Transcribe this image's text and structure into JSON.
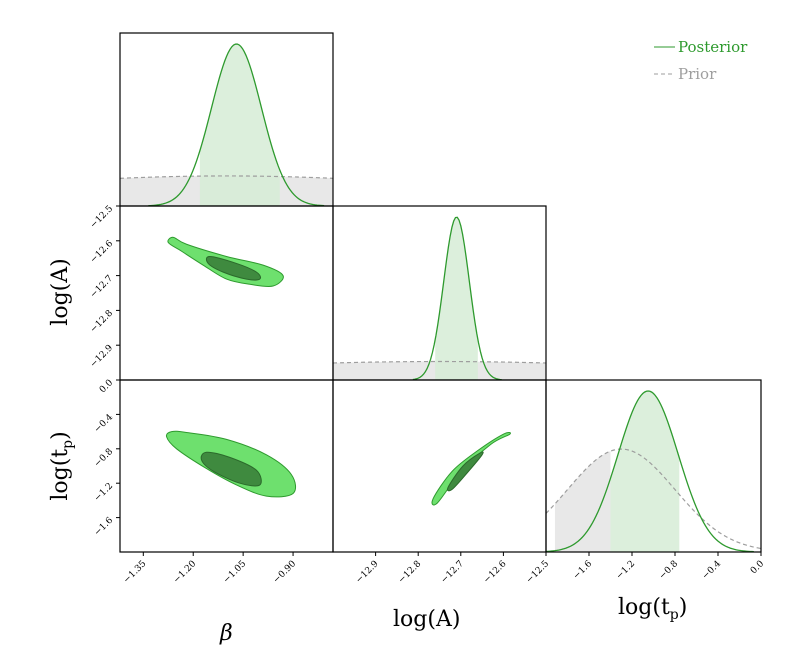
{
  "colors": {
    "posterior": "#2e9a2e",
    "posterior_fill": "#d6ecd6",
    "prior": "#9e9e9e",
    "prior_fill": "#e8e8e8",
    "contour_outer": "#6ee06e",
    "contour_inner": "#3f8a3f"
  },
  "legend": {
    "posterior_label": "Posterior",
    "prior_label": "Prior",
    "placement": "top-right"
  },
  "axes": {
    "beta_label": "β",
    "logA_label": "log(A)",
    "logtp_label": "log(t",
    "logtp_sub": "p",
    "close_paren": ")"
  },
  "chart_data": {
    "type": "corner",
    "parameters": [
      {
        "name": "beta",
        "label": "β",
        "range": [
          -1.42,
          -0.78
        ],
        "ticks": [
          -1.35,
          -1.2,
          -1.05,
          -0.9
        ],
        "tick_labels": [
          "−1.35",
          "−1.20",
          "−1.05",
          "−0.90"
        ]
      },
      {
        "name": "logA",
        "label": "log(A)",
        "range": [
          -13.0,
          -12.5
        ],
        "ticks": [
          -12.9,
          -12.8,
          -12.7,
          -12.6,
          -12.5
        ],
        "tick_labels": [
          "−12.9",
          "−12.8",
          "−12.7",
          "−12.6",
          "−12.5"
        ]
      },
      {
        "name": "logtp",
        "label": "log(tp)",
        "range": [
          -2.0,
          0.0
        ],
        "ticks": [
          -1.6,
          -1.2,
          -0.8,
          -0.4,
          0.0
        ],
        "tick_labels": [
          "−1.6",
          "−1.2",
          "−0.8",
          "−0.4",
          "0.0"
        ]
      }
    ],
    "y_ticks": {
      "logA": {
        "ticks": [
          -12.5,
          -12.6,
          -12.7,
          -12.8,
          -12.9
        ],
        "tick_labels": [
          "−12.5",
          "−12.6",
          "−12.7",
          "−12.8",
          "−12.9"
        ]
      },
      "logtp": {
        "ticks": [
          0.0,
          -0.4,
          -0.8,
          -1.2,
          -1.6
        ],
        "tick_labels": [
          "0.0",
          "−0.4",
          "−0.8",
          "−1.2",
          "−1.6"
        ]
      }
    },
    "marginals": [
      {
        "param": "beta",
        "posterior_mean": -1.07,
        "posterior_sd": 0.075,
        "interval": [
          -1.18,
          -0.94
        ],
        "prior_level": 0.18
      },
      {
        "param": "logA",
        "posterior_mean": -12.71,
        "posterior_sd": 0.03,
        "interval": [
          -12.76,
          -12.66
        ],
        "prior_level": 0.11
      },
      {
        "param": "logtp",
        "posterior_mean": -1.05,
        "posterior_sd": 0.28,
        "interval": [
          -1.4,
          -0.76
        ],
        "prior_mean": -1.3,
        "prior_sd": 0.5,
        "prior_interval": [
          -1.92,
          -1.4
        ]
      }
    ],
    "contours": [
      {
        "x": "beta",
        "y": "logA",
        "outer": [
          [
            -1.26,
            -12.59
          ],
          [
            -1.22,
            -12.61
          ],
          [
            -1.1,
            -12.645
          ],
          [
            -0.99,
            -12.67
          ],
          [
            -0.93,
            -12.7
          ],
          [
            -0.96,
            -12.73
          ],
          [
            -1.03,
            -12.725
          ],
          [
            -1.1,
            -12.71
          ],
          [
            -1.17,
            -12.67
          ],
          [
            -1.235,
            -12.63
          ],
          [
            -1.275,
            -12.605
          ]
        ],
        "inner": [
          [
            -1.15,
            -12.645
          ],
          [
            -1.07,
            -12.665
          ],
          [
            -1.01,
            -12.69
          ],
          [
            -1.0,
            -12.71
          ],
          [
            -1.04,
            -12.71
          ],
          [
            -1.11,
            -12.69
          ],
          [
            -1.155,
            -12.665
          ]
        ]
      },
      {
        "x": "beta",
        "y": "logtp",
        "outer": [
          [
            -1.265,
            -0.6
          ],
          [
            -1.22,
            -0.61
          ],
          [
            -1.1,
            -0.69
          ],
          [
            -0.98,
            -0.87
          ],
          [
            -0.905,
            -1.1
          ],
          [
            -0.9,
            -1.32
          ],
          [
            -0.98,
            -1.35
          ],
          [
            -1.07,
            -1.22
          ],
          [
            -1.16,
            -1.03
          ],
          [
            -1.25,
            -0.8
          ],
          [
            -1.28,
            -0.66
          ]
        ],
        "inner": [
          [
            -1.16,
            -0.84
          ],
          [
            -1.09,
            -0.9
          ],
          [
            -1.01,
            -1.05
          ],
          [
            -1.0,
            -1.22
          ],
          [
            -1.06,
            -1.2
          ],
          [
            -1.14,
            -1.06
          ],
          [
            -1.175,
            -0.93
          ]
        ]
      },
      {
        "x": "logA",
        "y": "logtp",
        "outer": [
          [
            -12.765,
            -1.38
          ],
          [
            -12.72,
            -1.06
          ],
          [
            -12.66,
            -0.82
          ],
          [
            -12.6,
            -0.63
          ],
          [
            -12.585,
            -0.63
          ],
          [
            -12.63,
            -0.75
          ],
          [
            -12.7,
            -1.07
          ],
          [
            -12.755,
            -1.43
          ]
        ],
        "inner": [
          [
            -12.73,
            -1.25
          ],
          [
            -12.695,
            -1.0
          ],
          [
            -12.655,
            -0.85
          ],
          [
            -12.65,
            -0.87
          ],
          [
            -12.685,
            -1.08
          ],
          [
            -12.72,
            -1.27
          ]
        ]
      }
    ]
  }
}
